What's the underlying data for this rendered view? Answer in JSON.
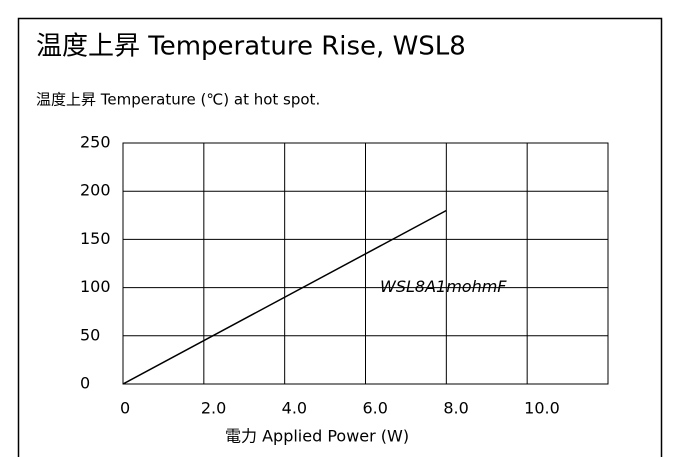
{
  "chart_data": {
    "type": "line",
    "title": "温度上昇 Temperature Rise, WSL8",
    "subtitle": "温度上昇  Temperature (℃) at hot spot.",
    "x_label": "電力  Applied Power (W)",
    "x": [
      0,
      8
    ],
    "series": [
      {
        "name": "WSL8A1mohmF",
        "color": "#000000",
        "values": [
          0,
          180
        ]
      }
    ],
    "xlim": [
      0,
      12
    ],
    "xticks": [
      0,
      {
        "value": 2,
        "label": "2.0"
      },
      {
        "value": 4,
        "label": "4.0"
      },
      {
        "value": 6,
        "label": "6.0"
      },
      {
        "value": 8,
        "label": "8.0"
      },
      {
        "value": 10,
        "label": "10.0"
      }
    ],
    "ylim": [
      0,
      250
    ],
    "yticks": [
      0,
      50,
      100,
      150,
      200,
      250
    ],
    "grid": true
  }
}
